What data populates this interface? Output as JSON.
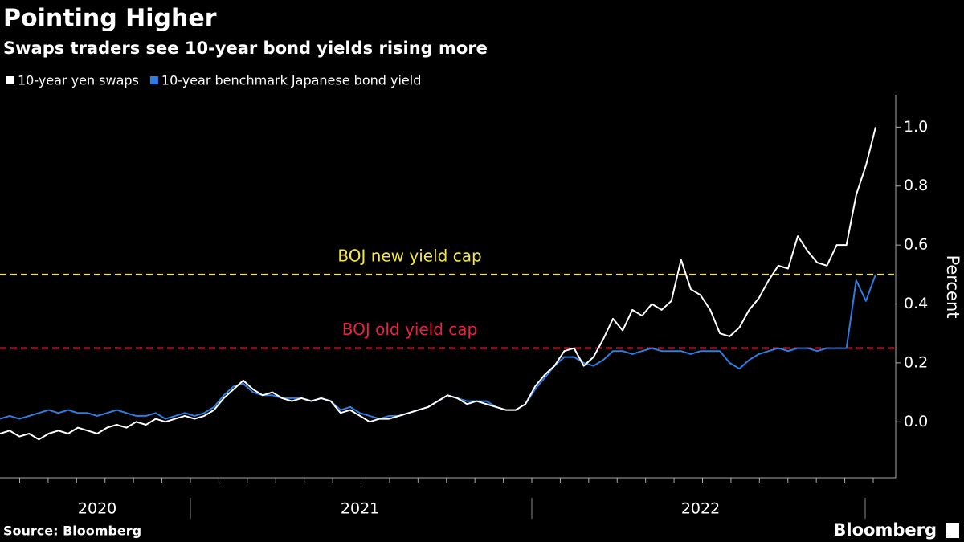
{
  "chart_data": {
    "type": "line",
    "title": "Pointing Higher",
    "subtitle": "Swaps traders see 10-year bond yields rising more",
    "y_label": "Percent",
    "source": "Source: Bloomberg",
    "brand": "Bloomberg",
    "ylim": [
      -0.19,
      1.11
    ],
    "yticks": [
      {
        "value": 0,
        "label": "0.0"
      },
      0.2,
      0.4,
      0.6,
      0.8,
      {
        "value": 1,
        "label": "1.0"
      }
    ],
    "categories": [
      null,
      null,
      null,
      null,
      null,
      null,
      null,
      null,
      null,
      null,
      "2020",
      null,
      null,
      null,
      null,
      null,
      null,
      null,
      null,
      null,
      null,
      null,
      null,
      null,
      null,
      null,
      null,
      null,
      null,
      null,
      null,
      null,
      null,
      null,
      null,
      null,
      null,
      "2021",
      null,
      null,
      null,
      null,
      null,
      null,
      null,
      null,
      null,
      null,
      null,
      null,
      null,
      null,
      null,
      null,
      null,
      null,
      null,
      null,
      null,
      null,
      null,
      null,
      null,
      null,
      null,
      null,
      null,
      null,
      null,
      null,
      null,
      null,
      "2022",
      null,
      null,
      null,
      null,
      null,
      null,
      null,
      null,
      null,
      null,
      null,
      null,
      null,
      null,
      null,
      null,
      null,
      null
    ],
    "series": [
      {
        "name": "10-year yen swaps",
        "color": "#ffffff",
        "values": [
          -0.04,
          -0.03,
          -0.05,
          -0.04,
          -0.06,
          -0.04,
          -0.03,
          -0.04,
          -0.02,
          -0.03,
          -0.04,
          -0.02,
          -0.01,
          -0.02,
          0.0,
          -0.01,
          0.01,
          0.0,
          0.01,
          0.02,
          0.01,
          0.02,
          0.04,
          0.08,
          0.11,
          0.14,
          0.11,
          0.09,
          0.1,
          0.08,
          0.07,
          0.08,
          0.07,
          0.08,
          0.07,
          0.03,
          0.04,
          0.02,
          0.0,
          0.01,
          0.01,
          0.02,
          0.03,
          0.04,
          0.05,
          0.07,
          0.09,
          0.08,
          0.06,
          0.07,
          0.06,
          0.05,
          0.04,
          0.04,
          0.06,
          0.12,
          0.16,
          0.19,
          0.24,
          0.25,
          0.19,
          0.22,
          0.28,
          0.35,
          0.31,
          0.38,
          0.36,
          0.4,
          0.38,
          0.41,
          0.55,
          0.45,
          0.43,
          0.38,
          0.3,
          0.29,
          0.32,
          0.38,
          0.42,
          0.48,
          0.53,
          0.52,
          0.63,
          0.58,
          0.54,
          0.53,
          0.6,
          0.6,
          0.77,
          0.87,
          1.0
        ]
      },
      {
        "name": "10-year benchmark Japanese bond yield",
        "color": "#2f7de1",
        "values": [
          0.01,
          0.02,
          0.01,
          0.02,
          0.03,
          0.04,
          0.03,
          0.04,
          0.03,
          0.03,
          0.02,
          0.03,
          0.04,
          0.03,
          0.02,
          0.02,
          0.03,
          0.01,
          0.02,
          0.03,
          0.02,
          0.03,
          0.05,
          0.09,
          0.12,
          0.13,
          0.1,
          0.09,
          0.09,
          0.08,
          0.08,
          0.08,
          0.07,
          0.08,
          0.07,
          0.04,
          0.05,
          0.03,
          0.02,
          0.01,
          0.02,
          0.02,
          0.03,
          0.04,
          0.05,
          0.07,
          0.09,
          0.08,
          0.07,
          0.07,
          0.07,
          0.05,
          0.04,
          0.04,
          0.06,
          0.11,
          0.15,
          0.19,
          0.22,
          0.22,
          0.2,
          0.19,
          0.21,
          0.24,
          0.24,
          0.23,
          0.24,
          0.25,
          0.24,
          0.24,
          0.24,
          0.23,
          0.24,
          0.24,
          0.24,
          0.2,
          0.18,
          0.21,
          0.23,
          0.24,
          0.25,
          0.24,
          0.25,
          0.25,
          0.24,
          0.25,
          0.25,
          0.25,
          0.48,
          0.41,
          0.5
        ]
      }
    ],
    "annotations": [
      {
        "text": "BOJ new yield cap",
        "value": 0.5,
        "color": "#f5e642"
      },
      {
        "text": "BOJ old yield cap",
        "value": 0.25,
        "color": "#e8233f"
      }
    ]
  }
}
